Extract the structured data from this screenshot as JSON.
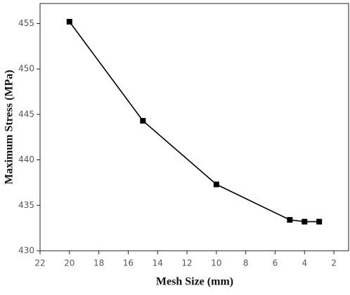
{
  "chart_data": {
    "type": "line",
    "x_label": "Mesh Size  (mm)",
    "y_label": "Maximum Stress (MPa)",
    "x": [
      20,
      15,
      10,
      5,
      4,
      3
    ],
    "series": [
      {
        "color": "#000000",
        "values": [
          455.2,
          444.3,
          437.3,
          433.4,
          433.2,
          433.2
        ]
      }
    ],
    "xlim": [
      22,
      1
    ],
    "xticks": [
      22,
      20,
      18,
      16,
      14,
      12,
      10,
      8,
      6,
      4,
      2
    ],
    "ylim": [
      430,
      457.2
    ],
    "yticks": [
      430,
      435,
      440,
      445,
      450,
      455
    ]
  }
}
